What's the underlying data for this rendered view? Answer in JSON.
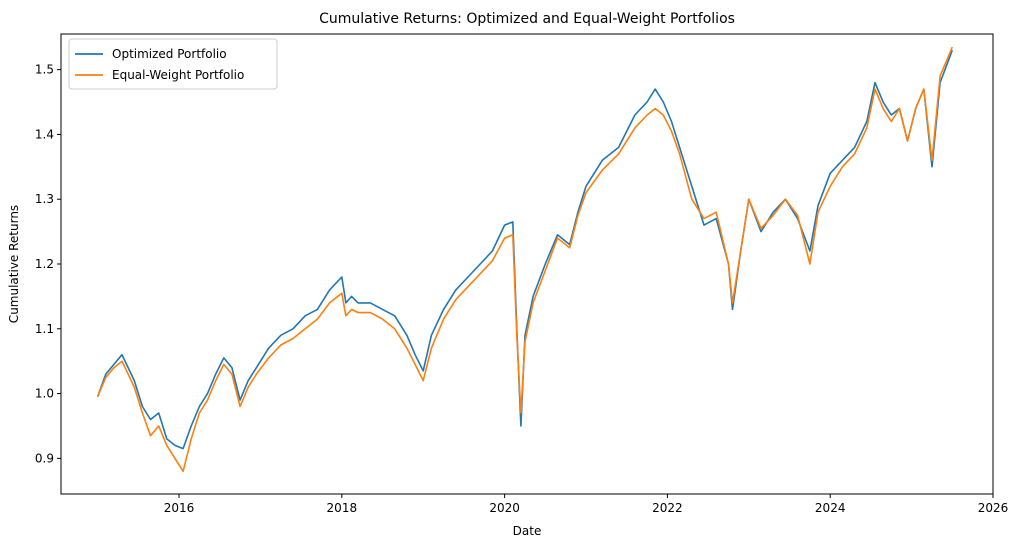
{
  "chart_data": {
    "type": "line",
    "title": "Cumulative Returns: Optimized and Equal-Weight Portfolios",
    "xlabel": "Date",
    "ylabel": "Cumulative Returns",
    "xlim": [
      2014.55,
      2026.0
    ],
    "ylim": [
      0.845,
      1.555
    ],
    "x_ticks": [
      2016,
      2018,
      2020,
      2022,
      2024,
      2026
    ],
    "y_ticks": [
      0.9,
      1.0,
      1.1,
      1.2,
      1.3,
      1.4,
      1.5
    ],
    "y_tick_labels": [
      "0.9",
      "1.0",
      "1.1",
      "1.2",
      "1.3",
      "1.4",
      "1.5"
    ],
    "grid": false,
    "legend": "top-left",
    "series": [
      {
        "name": "Optimized Portfolio",
        "color": "#1f77b4",
        "x": [
          2015.0,
          2015.1,
          2015.2,
          2015.3,
          2015.45,
          2015.55,
          2015.65,
          2015.75,
          2015.85,
          2015.95,
          2016.05,
          2016.15,
          2016.25,
          2016.35,
          2016.45,
          2016.55,
          2016.65,
          2016.75,
          2016.85,
          2016.95,
          2017.1,
          2017.25,
          2017.4,
          2017.55,
          2017.7,
          2017.85,
          2018.0,
          2018.05,
          2018.12,
          2018.2,
          2018.35,
          2018.5,
          2018.65,
          2018.8,
          2018.9,
          2019.0,
          2019.1,
          2019.25,
          2019.4,
          2019.55,
          2019.7,
          2019.85,
          2020.0,
          2020.1,
          2020.15,
          2020.2,
          2020.25,
          2020.35,
          2020.5,
          2020.65,
          2020.8,
          2020.9,
          2021.0,
          2021.2,
          2021.4,
          2021.6,
          2021.75,
          2021.85,
          2021.95,
          2022.05,
          2022.15,
          2022.3,
          2022.45,
          2022.6,
          2022.75,
          2022.8,
          2022.9,
          2023.0,
          2023.15,
          2023.3,
          2023.45,
          2023.6,
          2023.75,
          2023.85,
          2024.0,
          2024.15,
          2024.3,
          2024.45,
          2024.55,
          2024.65,
          2024.75,
          2024.85,
          2024.95,
          2025.05,
          2025.15,
          2025.25,
          2025.35,
          2025.5
        ],
        "y": [
          0.995,
          1.03,
          1.045,
          1.06,
          1.02,
          0.98,
          0.96,
          0.97,
          0.93,
          0.92,
          0.915,
          0.95,
          0.98,
          1.0,
          1.03,
          1.055,
          1.04,
          0.99,
          1.02,
          1.04,
          1.07,
          1.09,
          1.1,
          1.12,
          1.13,
          1.16,
          1.18,
          1.14,
          1.15,
          1.14,
          1.14,
          1.13,
          1.12,
          1.09,
          1.06,
          1.035,
          1.09,
          1.13,
          1.16,
          1.18,
          1.2,
          1.22,
          1.26,
          1.265,
          1.1,
          0.95,
          1.09,
          1.15,
          1.2,
          1.245,
          1.23,
          1.28,
          1.32,
          1.36,
          1.38,
          1.43,
          1.45,
          1.47,
          1.45,
          1.42,
          1.38,
          1.32,
          1.26,
          1.27,
          1.2,
          1.13,
          1.22,
          1.3,
          1.25,
          1.28,
          1.3,
          1.27,
          1.22,
          1.29,
          1.34,
          1.36,
          1.38,
          1.42,
          1.48,
          1.45,
          1.43,
          1.44,
          1.39,
          1.44,
          1.47,
          1.35,
          1.48,
          1.53
        ]
      },
      {
        "name": "Equal-Weight Portfolio",
        "color": "#ff7f0e",
        "x": [
          2015.0,
          2015.1,
          2015.2,
          2015.3,
          2015.45,
          2015.55,
          2015.65,
          2015.75,
          2015.85,
          2015.95,
          2016.05,
          2016.15,
          2016.25,
          2016.35,
          2016.45,
          2016.55,
          2016.65,
          2016.75,
          2016.85,
          2016.95,
          2017.1,
          2017.25,
          2017.4,
          2017.55,
          2017.7,
          2017.85,
          2018.0,
          2018.05,
          2018.12,
          2018.2,
          2018.35,
          2018.5,
          2018.65,
          2018.8,
          2018.9,
          2019.0,
          2019.1,
          2019.25,
          2019.4,
          2019.55,
          2019.7,
          2019.85,
          2020.0,
          2020.1,
          2020.15,
          2020.2,
          2020.25,
          2020.35,
          2020.5,
          2020.65,
          2020.8,
          2020.9,
          2021.0,
          2021.2,
          2021.4,
          2021.6,
          2021.75,
          2021.85,
          2021.95,
          2022.05,
          2022.15,
          2022.3,
          2022.45,
          2022.6,
          2022.75,
          2022.8,
          2022.9,
          2023.0,
          2023.15,
          2023.3,
          2023.45,
          2023.6,
          2023.75,
          2023.85,
          2024.0,
          2024.15,
          2024.3,
          2024.45,
          2024.55,
          2024.65,
          2024.75,
          2024.85,
          2024.95,
          2025.05,
          2025.15,
          2025.25,
          2025.35,
          2025.5
        ],
        "y": [
          0.995,
          1.025,
          1.04,
          1.05,
          1.01,
          0.97,
          0.935,
          0.95,
          0.92,
          0.9,
          0.88,
          0.93,
          0.97,
          0.99,
          1.02,
          1.045,
          1.03,
          0.98,
          1.01,
          1.03,
          1.055,
          1.075,
          1.085,
          1.1,
          1.115,
          1.14,
          1.155,
          1.12,
          1.13,
          1.125,
          1.125,
          1.115,
          1.1,
          1.07,
          1.045,
          1.02,
          1.07,
          1.115,
          1.145,
          1.165,
          1.185,
          1.205,
          1.24,
          1.245,
          1.09,
          0.97,
          1.08,
          1.14,
          1.19,
          1.24,
          1.225,
          1.275,
          1.31,
          1.345,
          1.37,
          1.41,
          1.43,
          1.44,
          1.43,
          1.405,
          1.37,
          1.3,
          1.27,
          1.28,
          1.2,
          1.14,
          1.22,
          1.3,
          1.255,
          1.275,
          1.3,
          1.275,
          1.2,
          1.28,
          1.32,
          1.35,
          1.37,
          1.41,
          1.47,
          1.44,
          1.42,
          1.44,
          1.39,
          1.44,
          1.47,
          1.36,
          1.49,
          1.535
        ]
      }
    ]
  }
}
